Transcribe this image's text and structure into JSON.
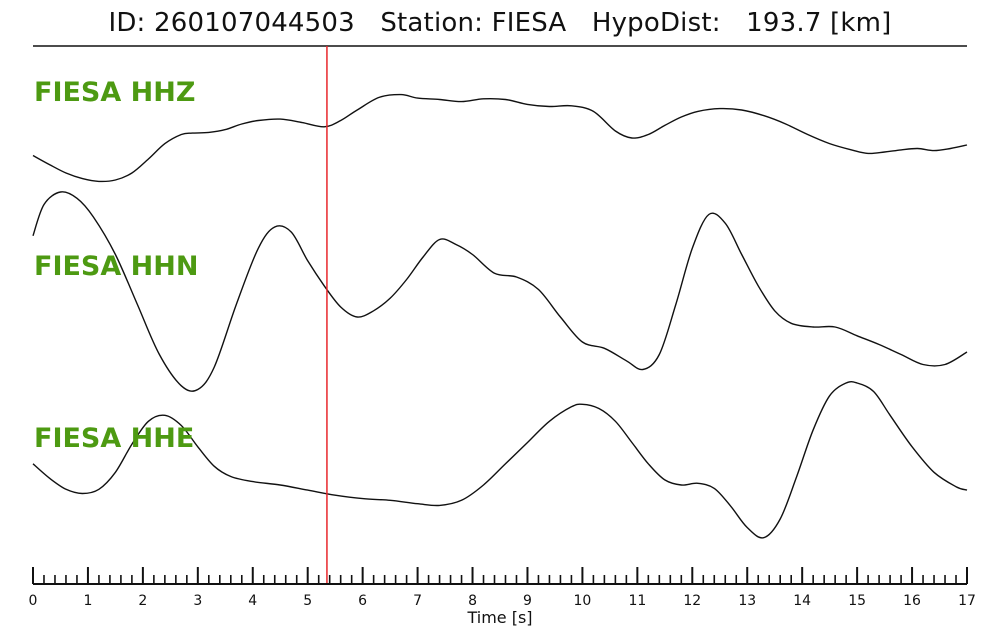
{
  "header": {
    "id_label": "ID:",
    "id_value": "260107044503",
    "station_label": "Station:",
    "station_value": "FIESA",
    "hypodist_label": "HypoDist:",
    "hypodist_value": "193.7",
    "hypodist_unit": "[km]"
  },
  "colors": {
    "trace": "#111111",
    "pick_line": "#e8272b",
    "channel_label": "#4d9a12"
  },
  "chart_data": {
    "type": "line",
    "xlabel": "Time [s]",
    "xlim": [
      0,
      17
    ],
    "major_ticks": [
      0,
      1,
      2,
      3,
      4,
      5,
      6,
      7,
      8,
      9,
      10,
      11,
      12,
      13,
      14,
      15,
      16,
      17
    ],
    "minor_tick_step": 0.2,
    "pick_time": 5.35,
    "series": [
      {
        "name": "FIESA HHZ",
        "x": [
          0,
          0.3,
          0.6,
          0.9,
          1.2,
          1.5,
          1.8,
          2.1,
          2.4,
          2.7,
          2.9,
          3.2,
          3.5,
          3.8,
          4.1,
          4.5,
          4.9,
          5.3,
          5.6,
          5.9,
          6.3,
          6.7,
          7.0,
          7.4,
          7.8,
          8.2,
          8.6,
          9.0,
          9.4,
          9.8,
          10.2,
          10.6,
          10.9,
          11.2,
          11.5,
          11.8,
          12.1,
          12.5,
          12.9,
          13.3,
          13.7,
          14.1,
          14.5,
          14.9,
          15.2,
          15.5,
          15.8,
          16.1,
          16.4,
          16.7,
          17.0
        ],
        "values": [
          -0.05,
          -0.18,
          -0.3,
          -0.38,
          -0.42,
          -0.4,
          -0.3,
          -0.1,
          0.12,
          0.25,
          0.27,
          0.28,
          0.32,
          0.4,
          0.45,
          0.47,
          0.42,
          0.36,
          0.45,
          0.6,
          0.78,
          0.82,
          0.77,
          0.75,
          0.72,
          0.76,
          0.75,
          0.68,
          0.65,
          0.66,
          0.58,
          0.3,
          0.2,
          0.25,
          0.38,
          0.5,
          0.58,
          0.62,
          0.6,
          0.52,
          0.4,
          0.25,
          0.12,
          0.03,
          -0.02,
          0.0,
          0.03,
          0.05,
          0.02,
          0.05,
          0.1
        ]
      },
      {
        "name": "FIESA HHN",
        "x": [
          0,
          0.2,
          0.5,
          0.8,
          1.1,
          1.5,
          1.9,
          2.3,
          2.7,
          3.0,
          3.3,
          3.7,
          4.1,
          4.4,
          4.7,
          5.0,
          5.3,
          5.6,
          5.9,
          6.2,
          6.5,
          6.8,
          7.1,
          7.4,
          7.7,
          8.0,
          8.4,
          8.8,
          9.2,
          9.6,
          10.0,
          10.4,
          10.8,
          11.1,
          11.4,
          11.7,
          12.0,
          12.3,
          12.6,
          12.9,
          13.2,
          13.5,
          13.8,
          14.2,
          14.6,
          15.0,
          15.4,
          15.8,
          16.2,
          16.6,
          17.0
        ],
        "values": [
          0.45,
          0.7,
          0.8,
          0.75,
          0.6,
          0.3,
          -0.1,
          -0.5,
          -0.75,
          -0.78,
          -0.6,
          -0.1,
          0.35,
          0.52,
          0.48,
          0.25,
          0.05,
          -0.12,
          -0.2,
          -0.15,
          -0.05,
          0.1,
          0.28,
          0.42,
          0.38,
          0.3,
          0.15,
          0.12,
          0.02,
          -0.2,
          -0.4,
          -0.45,
          -0.55,
          -0.62,
          -0.5,
          -0.1,
          0.35,
          0.62,
          0.55,
          0.3,
          0.05,
          -0.15,
          -0.25,
          -0.28,
          -0.28,
          -0.35,
          -0.42,
          -0.5,
          -0.58,
          -0.58,
          -0.48
        ]
      },
      {
        "name": "FIESA HHE",
        "x": [
          0,
          0.3,
          0.6,
          0.9,
          1.2,
          1.5,
          1.8,
          2.1,
          2.4,
          2.7,
          3.0,
          3.3,
          3.6,
          4.0,
          4.5,
          5.0,
          5.5,
          6.0,
          6.5,
          7.0,
          7.4,
          7.8,
          8.2,
          8.6,
          9.0,
          9.4,
          9.8,
          10.0,
          10.3,
          10.6,
          10.9,
          11.2,
          11.5,
          11.8,
          12.1,
          12.4,
          12.7,
          13.0,
          13.3,
          13.6,
          13.9,
          14.2,
          14.5,
          14.8,
          15.0,
          15.3,
          15.6,
          16.0,
          16.4,
          16.8,
          17.0
        ],
        "values": [
          0.05,
          -0.12,
          -0.25,
          -0.3,
          -0.25,
          -0.05,
          0.28,
          0.55,
          0.62,
          0.5,
          0.25,
          0.02,
          -0.1,
          -0.16,
          -0.2,
          -0.26,
          -0.32,
          -0.36,
          -0.38,
          -0.42,
          -0.44,
          -0.38,
          -0.2,
          0.05,
          0.3,
          0.55,
          0.72,
          0.75,
          0.7,
          0.55,
          0.3,
          0.05,
          -0.14,
          -0.2,
          -0.18,
          -0.24,
          -0.45,
          -0.7,
          -0.82,
          -0.6,
          -0.1,
          0.45,
          0.85,
          1.0,
          1.0,
          0.9,
          0.62,
          0.25,
          -0.05,
          -0.22,
          -0.26
        ]
      }
    ]
  }
}
